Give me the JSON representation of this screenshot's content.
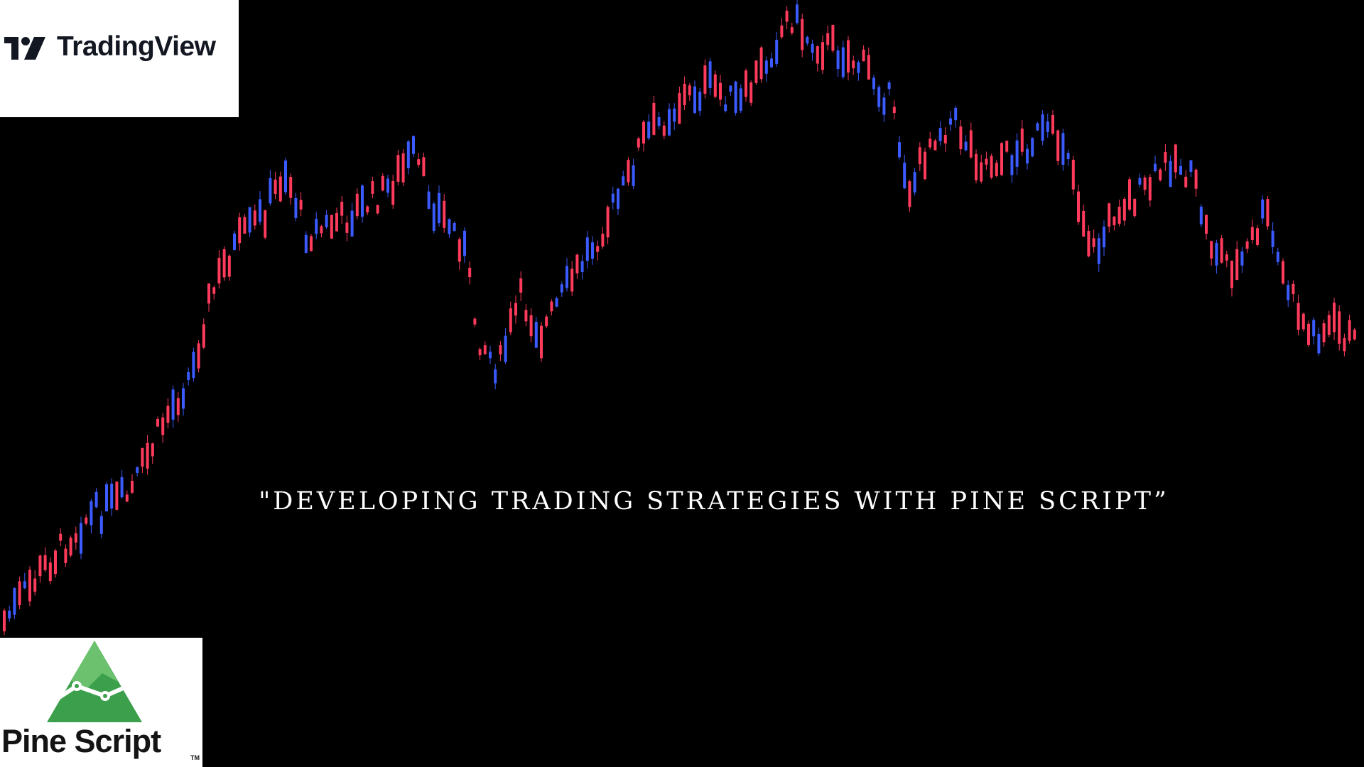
{
  "headline": "\"DEVELOPING TRADING STRATEGIES WITH PINE SCRIPT”",
  "tradingview_logo": {
    "wordmark": "TradingView",
    "icon": "tradingview-logo-icon"
  },
  "pinescript_logo": {
    "wordmark": "Pine Script",
    "trademark": "TM",
    "icon": "pine-script-mountain-icon"
  },
  "colors": {
    "background": "#000000",
    "up_candle": "#3b5bff",
    "down_candle": "#ff3b5c",
    "pine_green": "#3c9f4b",
    "pine_light": "#6cc16f"
  }
}
